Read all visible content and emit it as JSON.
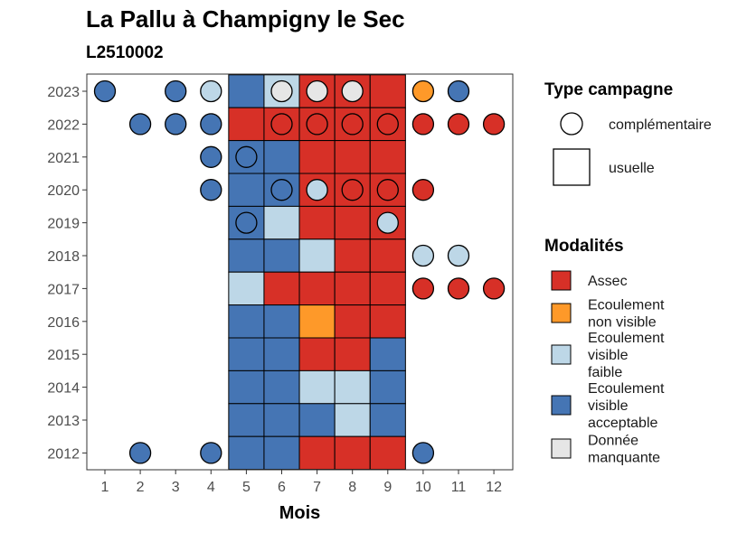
{
  "chart_data": {
    "type": "heatmap",
    "title": "La Pallu à Champigny le Sec",
    "subtitle": "L2510002",
    "xlabel": "Mois",
    "ylabel": "",
    "x_ticks": [
      "1",
      "2",
      "3",
      "4",
      "5",
      "6",
      "7",
      "8",
      "9",
      "10",
      "11",
      "12"
    ],
    "y_ticks": [
      "2012",
      "2013",
      "2014",
      "2015",
      "2016",
      "2017",
      "2018",
      "2019",
      "2020",
      "2021",
      "2022",
      "2023"
    ],
    "colors": {
      "Assec": "#d73027",
      "Ecoulement non visible": "#fe9929",
      "Ecoulement visible faible": "#bdd7e7",
      "Ecoulement visible acceptable": "#4575b4",
      "Donnée manquante": "#e6e6e6"
    },
    "usuelle": [
      {
        "year": 2023,
        "cells": {
          "5": "Ecoulement visible acceptable",
          "6": "Ecoulement visible faible",
          "7": "Assec",
          "8": "Assec",
          "9": "Assec"
        }
      },
      {
        "year": 2022,
        "cells": {
          "5": "Assec",
          "6": "Assec",
          "7": "Assec",
          "8": "Assec",
          "9": "Assec"
        }
      },
      {
        "year": 2021,
        "cells": {
          "5": "Ecoulement visible acceptable",
          "6": "Ecoulement visible acceptable",
          "7": "Assec",
          "8": "Assec",
          "9": "Assec"
        }
      },
      {
        "year": 2020,
        "cells": {
          "5": "Ecoulement visible acceptable",
          "6": "Ecoulement visible acceptable",
          "7": "Assec",
          "8": "Assec",
          "9": "Assec"
        }
      },
      {
        "year": 2019,
        "cells": {
          "5": "Ecoulement visible acceptable",
          "6": "Ecoulement visible faible",
          "7": "Assec",
          "8": "Assec",
          "9": "Assec"
        }
      },
      {
        "year": 2018,
        "cells": {
          "5": "Ecoulement visible acceptable",
          "6": "Ecoulement visible acceptable",
          "7": "Ecoulement visible faible",
          "8": "Assec",
          "9": "Assec"
        }
      },
      {
        "year": 2017,
        "cells": {
          "5": "Ecoulement visible faible",
          "6": "Assec",
          "7": "Assec",
          "8": "Assec",
          "9": "Assec"
        }
      },
      {
        "year": 2016,
        "cells": {
          "5": "Ecoulement visible acceptable",
          "6": "Ecoulement visible acceptable",
          "7": "Ecoulement non visible",
          "8": "Assec",
          "9": "Assec"
        }
      },
      {
        "year": 2015,
        "cells": {
          "5": "Ecoulement visible acceptable",
          "6": "Ecoulement visible acceptable",
          "7": "Assec",
          "8": "Assec",
          "9": "Ecoulement visible acceptable"
        }
      },
      {
        "year": 2014,
        "cells": {
          "5": "Ecoulement visible acceptable",
          "6": "Ecoulement visible acceptable",
          "7": "Ecoulement visible faible",
          "8": "Ecoulement visible faible",
          "9": "Ecoulement visible acceptable"
        }
      },
      {
        "year": 2013,
        "cells": {
          "5": "Ecoulement visible acceptable",
          "6": "Ecoulement visible acceptable",
          "7": "Ecoulement visible acceptable",
          "8": "Ecoulement visible faible",
          "9": "Ecoulement visible acceptable"
        }
      },
      {
        "year": 2012,
        "cells": {
          "5": "Ecoulement visible acceptable",
          "6": "Ecoulement visible acceptable",
          "7": "Assec",
          "8": "Assec",
          "9": "Assec"
        }
      }
    ],
    "complementaire": [
      {
        "year": 2023,
        "points": {
          "1": "Ecoulement visible acceptable",
          "3": "Ecoulement visible acceptable",
          "4": "Ecoulement visible faible",
          "6": "Donnée manquante",
          "7": "Donnée manquante",
          "8": "Donnée manquante",
          "10": "Ecoulement non visible",
          "11": "Ecoulement visible acceptable"
        }
      },
      {
        "year": 2022,
        "points": {
          "2": "Ecoulement visible acceptable",
          "3": "Ecoulement visible acceptable",
          "4": "Ecoulement visible acceptable",
          "6": "Assec",
          "7": "Assec",
          "8": "Assec",
          "9": "Assec",
          "10": "Assec",
          "11": "Assec",
          "12": "Assec"
        }
      },
      {
        "year": 2021,
        "points": {
          "4": "Ecoulement visible acceptable",
          "5": "Ecoulement visible acceptable"
        }
      },
      {
        "year": 2020,
        "points": {
          "4": "Ecoulement visible acceptable",
          "6": "Ecoulement visible acceptable",
          "7": "Ecoulement visible faible",
          "8": "Assec",
          "9": "Assec",
          "10": "Assec"
        }
      },
      {
        "year": 2019,
        "points": {
          "5": "Ecoulement visible acceptable",
          "9": "Ecoulement visible faible"
        }
      },
      {
        "year": 2018,
        "points": {
          "10": "Ecoulement visible faible",
          "11": "Ecoulement visible faible"
        }
      },
      {
        "year": 2017,
        "points": {
          "10": "Assec",
          "11": "Assec",
          "12": "Assec"
        }
      },
      {
        "year": 2012,
        "points": {
          "2": "Ecoulement visible acceptable",
          "4": "Ecoulement visible acceptable",
          "10": "Ecoulement visible acceptable"
        }
      }
    ],
    "legend": {
      "type_title": "Type campagne",
      "type_items": [
        "complémentaire",
        "usuelle"
      ],
      "modalites_title": "Modalités",
      "modalites_items": [
        {
          "key": "Assec",
          "lines": [
            "Assec"
          ]
        },
        {
          "key": "Ecoulement non visible",
          "lines": [
            "Ecoulement",
            "non visible"
          ]
        },
        {
          "key": "Ecoulement visible faible",
          "lines": [
            "Ecoulement",
            "visible",
            "faible"
          ]
        },
        {
          "key": "Ecoulement visible acceptable",
          "lines": [
            "Ecoulement",
            "visible",
            "acceptable"
          ]
        },
        {
          "key": "Donnée manquante",
          "lines": [
            "Donnée",
            "manquante"
          ]
        }
      ],
      "placement": "right"
    },
    "grid": false
  }
}
